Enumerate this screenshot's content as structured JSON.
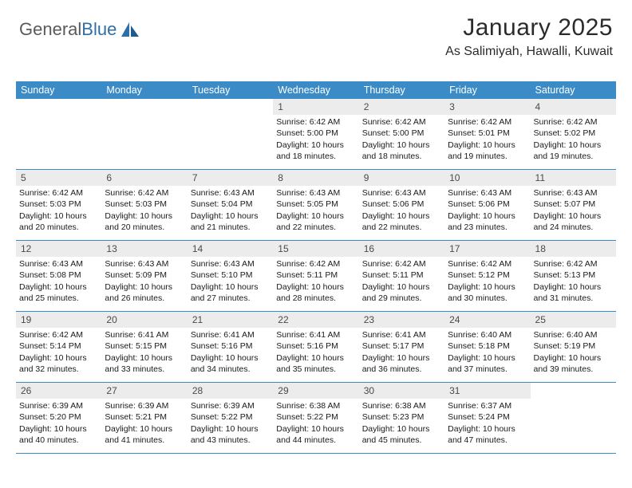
{
  "logo": {
    "text_general": "General",
    "text_blue": "Blue"
  },
  "title": "January 2025",
  "location": "As Salimiyah, Hawalli, Kuwait",
  "colors": {
    "header_bg": "#3b8bc6",
    "header_text": "#ffffff",
    "daynum_bg": "#ececec",
    "daynum_text": "#4a4a4a",
    "row_border": "#3b8bc6",
    "logo_gray": "#5a5a5a",
    "logo_blue": "#2f6fa8"
  },
  "day_headers": [
    "Sunday",
    "Monday",
    "Tuesday",
    "Wednesday",
    "Thursday",
    "Friday",
    "Saturday"
  ],
  "weeks": [
    [
      {
        "num": "",
        "sunrise": "",
        "sunset": "",
        "daylight": ""
      },
      {
        "num": "",
        "sunrise": "",
        "sunset": "",
        "daylight": ""
      },
      {
        "num": "",
        "sunrise": "",
        "sunset": "",
        "daylight": ""
      },
      {
        "num": "1",
        "sunrise": "6:42 AM",
        "sunset": "5:00 PM",
        "daylight": "10 hours and 18 minutes."
      },
      {
        "num": "2",
        "sunrise": "6:42 AM",
        "sunset": "5:00 PM",
        "daylight": "10 hours and 18 minutes."
      },
      {
        "num": "3",
        "sunrise": "6:42 AM",
        "sunset": "5:01 PM",
        "daylight": "10 hours and 19 minutes."
      },
      {
        "num": "4",
        "sunrise": "6:42 AM",
        "sunset": "5:02 PM",
        "daylight": "10 hours and 19 minutes."
      }
    ],
    [
      {
        "num": "5",
        "sunrise": "6:42 AM",
        "sunset": "5:03 PM",
        "daylight": "10 hours and 20 minutes."
      },
      {
        "num": "6",
        "sunrise": "6:42 AM",
        "sunset": "5:03 PM",
        "daylight": "10 hours and 20 minutes."
      },
      {
        "num": "7",
        "sunrise": "6:43 AM",
        "sunset": "5:04 PM",
        "daylight": "10 hours and 21 minutes."
      },
      {
        "num": "8",
        "sunrise": "6:43 AM",
        "sunset": "5:05 PM",
        "daylight": "10 hours and 22 minutes."
      },
      {
        "num": "9",
        "sunrise": "6:43 AM",
        "sunset": "5:06 PM",
        "daylight": "10 hours and 22 minutes."
      },
      {
        "num": "10",
        "sunrise": "6:43 AM",
        "sunset": "5:06 PM",
        "daylight": "10 hours and 23 minutes."
      },
      {
        "num": "11",
        "sunrise": "6:43 AM",
        "sunset": "5:07 PM",
        "daylight": "10 hours and 24 minutes."
      }
    ],
    [
      {
        "num": "12",
        "sunrise": "6:43 AM",
        "sunset": "5:08 PM",
        "daylight": "10 hours and 25 minutes."
      },
      {
        "num": "13",
        "sunrise": "6:43 AM",
        "sunset": "5:09 PM",
        "daylight": "10 hours and 26 minutes."
      },
      {
        "num": "14",
        "sunrise": "6:43 AM",
        "sunset": "5:10 PM",
        "daylight": "10 hours and 27 minutes."
      },
      {
        "num": "15",
        "sunrise": "6:42 AM",
        "sunset": "5:11 PM",
        "daylight": "10 hours and 28 minutes."
      },
      {
        "num": "16",
        "sunrise": "6:42 AM",
        "sunset": "5:11 PM",
        "daylight": "10 hours and 29 minutes."
      },
      {
        "num": "17",
        "sunrise": "6:42 AM",
        "sunset": "5:12 PM",
        "daylight": "10 hours and 30 minutes."
      },
      {
        "num": "18",
        "sunrise": "6:42 AM",
        "sunset": "5:13 PM",
        "daylight": "10 hours and 31 minutes."
      }
    ],
    [
      {
        "num": "19",
        "sunrise": "6:42 AM",
        "sunset": "5:14 PM",
        "daylight": "10 hours and 32 minutes."
      },
      {
        "num": "20",
        "sunrise": "6:41 AM",
        "sunset": "5:15 PM",
        "daylight": "10 hours and 33 minutes."
      },
      {
        "num": "21",
        "sunrise": "6:41 AM",
        "sunset": "5:16 PM",
        "daylight": "10 hours and 34 minutes."
      },
      {
        "num": "22",
        "sunrise": "6:41 AM",
        "sunset": "5:16 PM",
        "daylight": "10 hours and 35 minutes."
      },
      {
        "num": "23",
        "sunrise": "6:41 AM",
        "sunset": "5:17 PM",
        "daylight": "10 hours and 36 minutes."
      },
      {
        "num": "24",
        "sunrise": "6:40 AM",
        "sunset": "5:18 PM",
        "daylight": "10 hours and 37 minutes."
      },
      {
        "num": "25",
        "sunrise": "6:40 AM",
        "sunset": "5:19 PM",
        "daylight": "10 hours and 39 minutes."
      }
    ],
    [
      {
        "num": "26",
        "sunrise": "6:39 AM",
        "sunset": "5:20 PM",
        "daylight": "10 hours and 40 minutes."
      },
      {
        "num": "27",
        "sunrise": "6:39 AM",
        "sunset": "5:21 PM",
        "daylight": "10 hours and 41 minutes."
      },
      {
        "num": "28",
        "sunrise": "6:39 AM",
        "sunset": "5:22 PM",
        "daylight": "10 hours and 43 minutes."
      },
      {
        "num": "29",
        "sunrise": "6:38 AM",
        "sunset": "5:22 PM",
        "daylight": "10 hours and 44 minutes."
      },
      {
        "num": "30",
        "sunrise": "6:38 AM",
        "sunset": "5:23 PM",
        "daylight": "10 hours and 45 minutes."
      },
      {
        "num": "31",
        "sunrise": "6:37 AM",
        "sunset": "5:24 PM",
        "daylight": "10 hours and 47 minutes."
      },
      {
        "num": "",
        "sunrise": "",
        "sunset": "",
        "daylight": ""
      }
    ]
  ],
  "labels": {
    "sunrise": "Sunrise:",
    "sunset": "Sunset:",
    "daylight": "Daylight:"
  }
}
